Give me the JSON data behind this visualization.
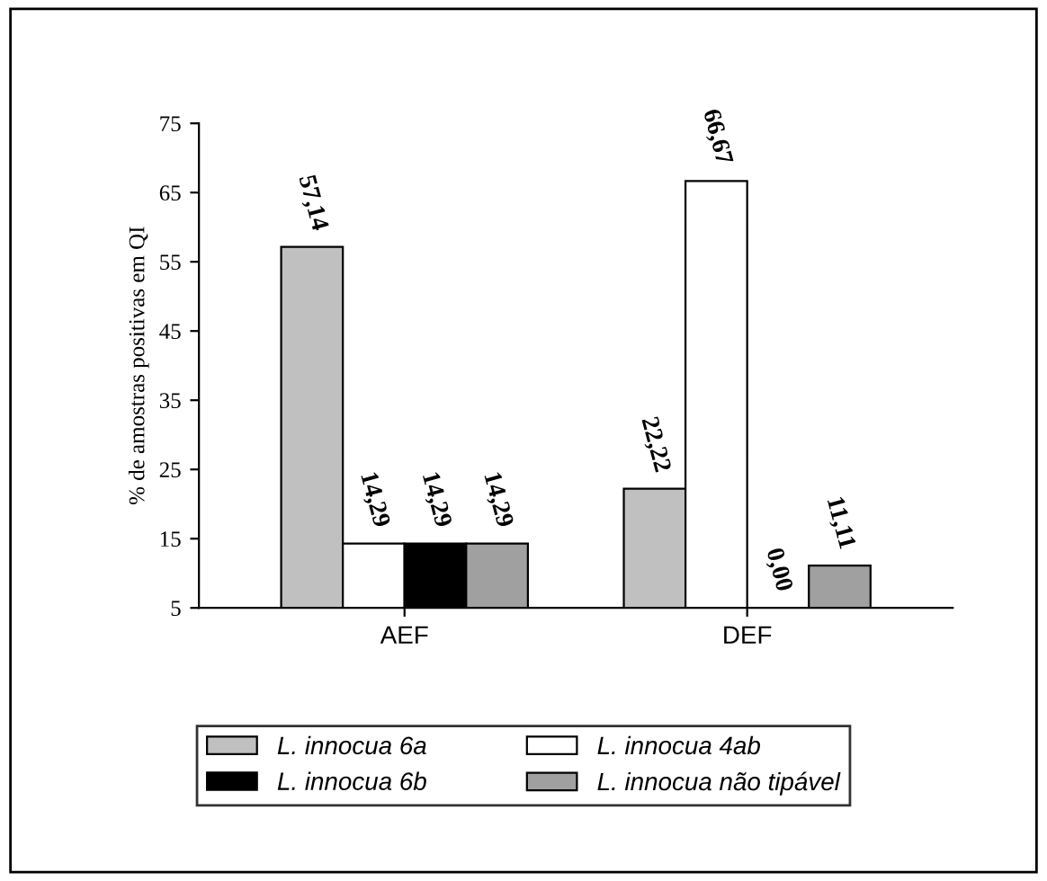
{
  "chart_data": {
    "type": "bar",
    "ylabel": "% de amostras positivas em QI",
    "categories": [
      "AEF",
      "DEF"
    ],
    "series": [
      {
        "name": "L. innocua 6a",
        "color": "#c0c0c0",
        "values": [
          57.14,
          22.22
        ],
        "value_labels": [
          "57,14",
          "22,22"
        ]
      },
      {
        "name": "L. innocua 4ab",
        "color": "#ffffff",
        "values": [
          14.29,
          66.67
        ],
        "value_labels": [
          "14,29",
          "66,67"
        ]
      },
      {
        "name": "L. innocua 6b",
        "color": "#000000",
        "values": [
          14.29,
          null
        ],
        "value_labels": [
          "14,29",
          "0,00"
        ]
      },
      {
        "name": "L. innocua não tipável",
        "color": "#a0a0a0",
        "values": [
          14.29,
          11.11
        ],
        "value_labels": [
          "14,29",
          "11,11"
        ]
      }
    ],
    "ylim": [
      5,
      75
    ],
    "yticks": [
      5,
      15,
      25,
      35,
      45,
      55,
      65,
      75
    ],
    "grid": false,
    "legend": "bottom"
  }
}
